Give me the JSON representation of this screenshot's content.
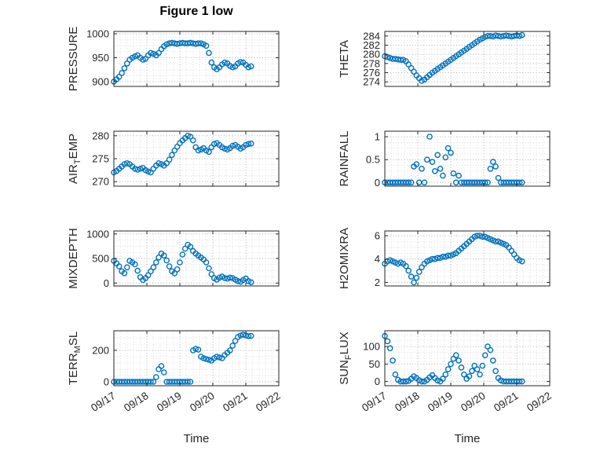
{
  "title": "Figure 1 low",
  "chart_data": {
    "type": "scatter",
    "title": "Figure 1 low",
    "xlabel": "Time",
    "legend": "none",
    "grid": {
      "major": true,
      "minor": true
    },
    "marker": {
      "shape": "circle",
      "fill": "none",
      "color": "#0072BD"
    },
    "colors": {
      "marker": "#0072BD",
      "axis": "#262626",
      "grid": "#b3b3b3",
      "minor_grid": "#dddddd"
    },
    "xlim": [
      0,
      5
    ],
    "xticks": [
      0,
      1,
      2,
      3,
      4,
      5
    ],
    "xtick_labels": [
      "09/17",
      "09/18",
      "09/19",
      "09/20",
      "09/21",
      "09/22"
    ],
    "x_unit": "days since 09/17",
    "x": [
      0,
      0.08,
      0.16,
      0.24,
      0.32,
      0.4,
      0.48,
      0.56,
      0.64,
      0.72,
      0.8,
      0.88,
      0.96,
      1.04,
      1.12,
      1.2,
      1.28,
      1.36,
      1.44,
      1.52,
      1.6,
      1.68,
      1.76,
      1.84,
      1.92,
      2,
      2.08,
      2.16,
      2.24,
      2.32,
      2.4,
      2.48,
      2.56,
      2.64,
      2.72,
      2.8,
      2.88,
      2.96,
      3.04,
      3.12,
      3.2,
      3.28,
      3.36,
      3.44,
      3.52,
      3.6,
      3.68,
      3.76,
      3.84,
      3.92,
      4,
      4.08,
      4.16
    ],
    "subplots": [
      {
        "name": "PRESSURE",
        "label_parts": [
          {
            "t": "PRESSURE",
            "sub": false
          }
        ],
        "ylim": [
          890,
          1005
        ],
        "yticks": [
          900,
          950,
          1000
        ],
        "ytick_labels": [
          "900",
          "950",
          "1000"
        ],
        "values": [
          900,
          905,
          910,
          918,
          928,
          938,
          946,
          950,
          953,
          955,
          950,
          946,
          948,
          955,
          960,
          958,
          955,
          960,
          968,
          974,
          978,
          980,
          981,
          980,
          979,
          980,
          981,
          980,
          980,
          981,
          980,
          979,
          980,
          980,
          978,
          975,
          960,
          940,
          930,
          926,
          930,
          936,
          940,
          938,
          933,
          930,
          932,
          938,
          941,
          940,
          935,
          930,
          932
        ]
      },
      {
        "name": "THETA",
        "label_parts": [
          {
            "t": "THETA",
            "sub": false
          }
        ],
        "ylim": [
          273,
          285
        ],
        "yticks": [
          274,
          276,
          278,
          280,
          282,
          284
        ],
        "ytick_labels": [
          "274",
          "276",
          "278",
          "280",
          "282",
          "284"
        ],
        "values": [
          279.6,
          279.4,
          279.2,
          279,
          279,
          278.9,
          278.8,
          278.8,
          278.5,
          277.8,
          277,
          276.2,
          275.4,
          274.8,
          274.2,
          274.5,
          275,
          275.5,
          276,
          276.4,
          276.8,
          277.2,
          277.6,
          278,
          278.4,
          278.8,
          279.2,
          279.6,
          280,
          280.4,
          280.8,
          281.2,
          281.6,
          282,
          282.4,
          282.8,
          283.2,
          283.5,
          283.8,
          284,
          284,
          283.9,
          284.1,
          284,
          283.9,
          284,
          284.1,
          284,
          283.9,
          284,
          284.1,
          284,
          284.2
        ]
      },
      {
        "name": "AIR_TEMP",
        "label_parts": [
          {
            "t": "AIR",
            "sub": false
          },
          {
            "t": "T",
            "sub": true
          },
          {
            "t": "EMP",
            "sub": false
          }
        ],
        "ylim": [
          269,
          281
        ],
        "yticks": [
          270,
          275,
          280
        ],
        "ytick_labels": [
          "270",
          "275",
          "280"
        ],
        "values": [
          272,
          272.3,
          272.8,
          273.3,
          273.8,
          274,
          273.8,
          273.3,
          272.8,
          272.6,
          272.8,
          273,
          272.5,
          272.2,
          272,
          272.8,
          273.5,
          274,
          273.8,
          273.5,
          274,
          274.8,
          275.8,
          276.8,
          277.6,
          278.4,
          279,
          279.5,
          280,
          279.8,
          279,
          277.5,
          276.8,
          277,
          277.3,
          276.8,
          276.5,
          277.5,
          278.2,
          278.4,
          278,
          277.5,
          277.2,
          277,
          277.3,
          277.8,
          278,
          277.6,
          277.2,
          277.5,
          278,
          278.2,
          278.3
        ]
      },
      {
        "name": "RAINFALL",
        "label_parts": [
          {
            "t": "RAINFALL",
            "sub": false
          }
        ],
        "ylim": [
          -0.08,
          1.12
        ],
        "yticks": [
          0,
          0.5,
          1
        ],
        "ytick_labels": [
          "0",
          "0.5",
          "1"
        ],
        "values": [
          0,
          0,
          0,
          0,
          0,
          0,
          0,
          0,
          0,
          0,
          0,
          0.35,
          0.4,
          0,
          0.3,
          0,
          0.5,
          1,
          0.45,
          0.25,
          0.6,
          0.3,
          0.15,
          0.55,
          0.75,
          0.65,
          0.2,
          0,
          0.15,
          0,
          0,
          0,
          0,
          0,
          0,
          0,
          0,
          0,
          0,
          0,
          0.3,
          0.45,
          0.35,
          0.1,
          0,
          0,
          0,
          0,
          0,
          0,
          0,
          0,
          0
        ]
      },
      {
        "name": "MIXDEPTH",
        "label_parts": [
          {
            "t": "MIXDEPTH",
            "sub": false
          }
        ],
        "ylim": [
          -60,
          1060
        ],
        "yticks": [
          0,
          500,
          1000
        ],
        "ytick_labels": [
          "0",
          "500",
          "1000"
        ],
        "values": [
          450,
          400,
          340,
          240,
          200,
          320,
          450,
          420,
          380,
          250,
          120,
          60,
          100,
          160,
          240,
          320,
          420,
          520,
          600,
          560,
          460,
          340,
          240,
          200,
          280,
          420,
          580,
          700,
          780,
          740,
          650,
          600,
          560,
          520,
          480,
          420,
          300,
          180,
          100,
          70,
          110,
          130,
          100,
          90,
          110,
          100,
          70,
          40,
          25,
          60,
          90,
          40,
          15
        ]
      },
      {
        "name": "H2OMIXRA",
        "label_parts": [
          {
            "t": "H2OMIXRA",
            "sub": false
          }
        ],
        "ylim": [
          1.7,
          6.4
        ],
        "yticks": [
          2,
          4,
          6
        ],
        "ytick_labels": [
          "2",
          "4",
          "6"
        ],
        "values": [
          3.6,
          3.8,
          3.9,
          3.8,
          3.7,
          3.6,
          3.7,
          3.6,
          3.4,
          3,
          2.5,
          2,
          2.4,
          2.9,
          3.3,
          3.6,
          3.8,
          3.9,
          4,
          4,
          4.1,
          4.1,
          4.2,
          4.2,
          4.3,
          4.3,
          4.4,
          4.5,
          4.7,
          4.9,
          5.1,
          5.3,
          5.5,
          5.7,
          5.9,
          6,
          6,
          5.9,
          5.9,
          5.8,
          5.7,
          5.6,
          5.5,
          5.5,
          5.4,
          5.3,
          5.2,
          5,
          4.7,
          4.4,
          4.1,
          3.9,
          3.8
        ]
      },
      {
        "name": "TERR_MSL",
        "label_parts": [
          {
            "t": "TERR",
            "sub": false
          },
          {
            "t": "M",
            "sub": true
          },
          {
            "t": "SL",
            "sub": false
          }
        ],
        "ylim": [
          -25,
          325
        ],
        "yticks": [
          0,
          200
        ],
        "ytick_labels": [
          "0",
          "200"
        ],
        "values": [
          0,
          0,
          0,
          0,
          0,
          0,
          0,
          0,
          0,
          0,
          0,
          0,
          0,
          0,
          0,
          0,
          30,
          80,
          100,
          60,
          0,
          0,
          0,
          0,
          0,
          0,
          0,
          0,
          0,
          0,
          200,
          210,
          205,
          160,
          150,
          145,
          140,
          135,
          150,
          160,
          155,
          150,
          170,
          185,
          200,
          230,
          260,
          285,
          295,
          300,
          295,
          290,
          292
        ]
      },
      {
        "name": "SUN_FLUX",
        "label_parts": [
          {
            "t": "SUN",
            "sub": false
          },
          {
            "t": "F",
            "sub": true
          },
          {
            "t": "LUX",
            "sub": false
          }
        ],
        "ylim": [
          -12,
          145
        ],
        "yticks": [
          0,
          50,
          100
        ],
        "ytick_labels": [
          "0",
          "50",
          "100"
        ],
        "values": [
          130,
          115,
          95,
          60,
          20,
          5,
          0,
          0,
          0,
          2,
          8,
          15,
          10,
          4,
          0,
          0,
          5,
          12,
          18,
          10,
          3,
          0,
          8,
          20,
          35,
          50,
          65,
          75,
          60,
          40,
          20,
          8,
          15,
          30,
          45,
          35,
          20,
          45,
          75,
          100,
          90,
          60,
          30,
          10,
          3,
          0,
          0,
          0,
          0,
          0,
          0,
          0,
          0
        ]
      }
    ]
  }
}
